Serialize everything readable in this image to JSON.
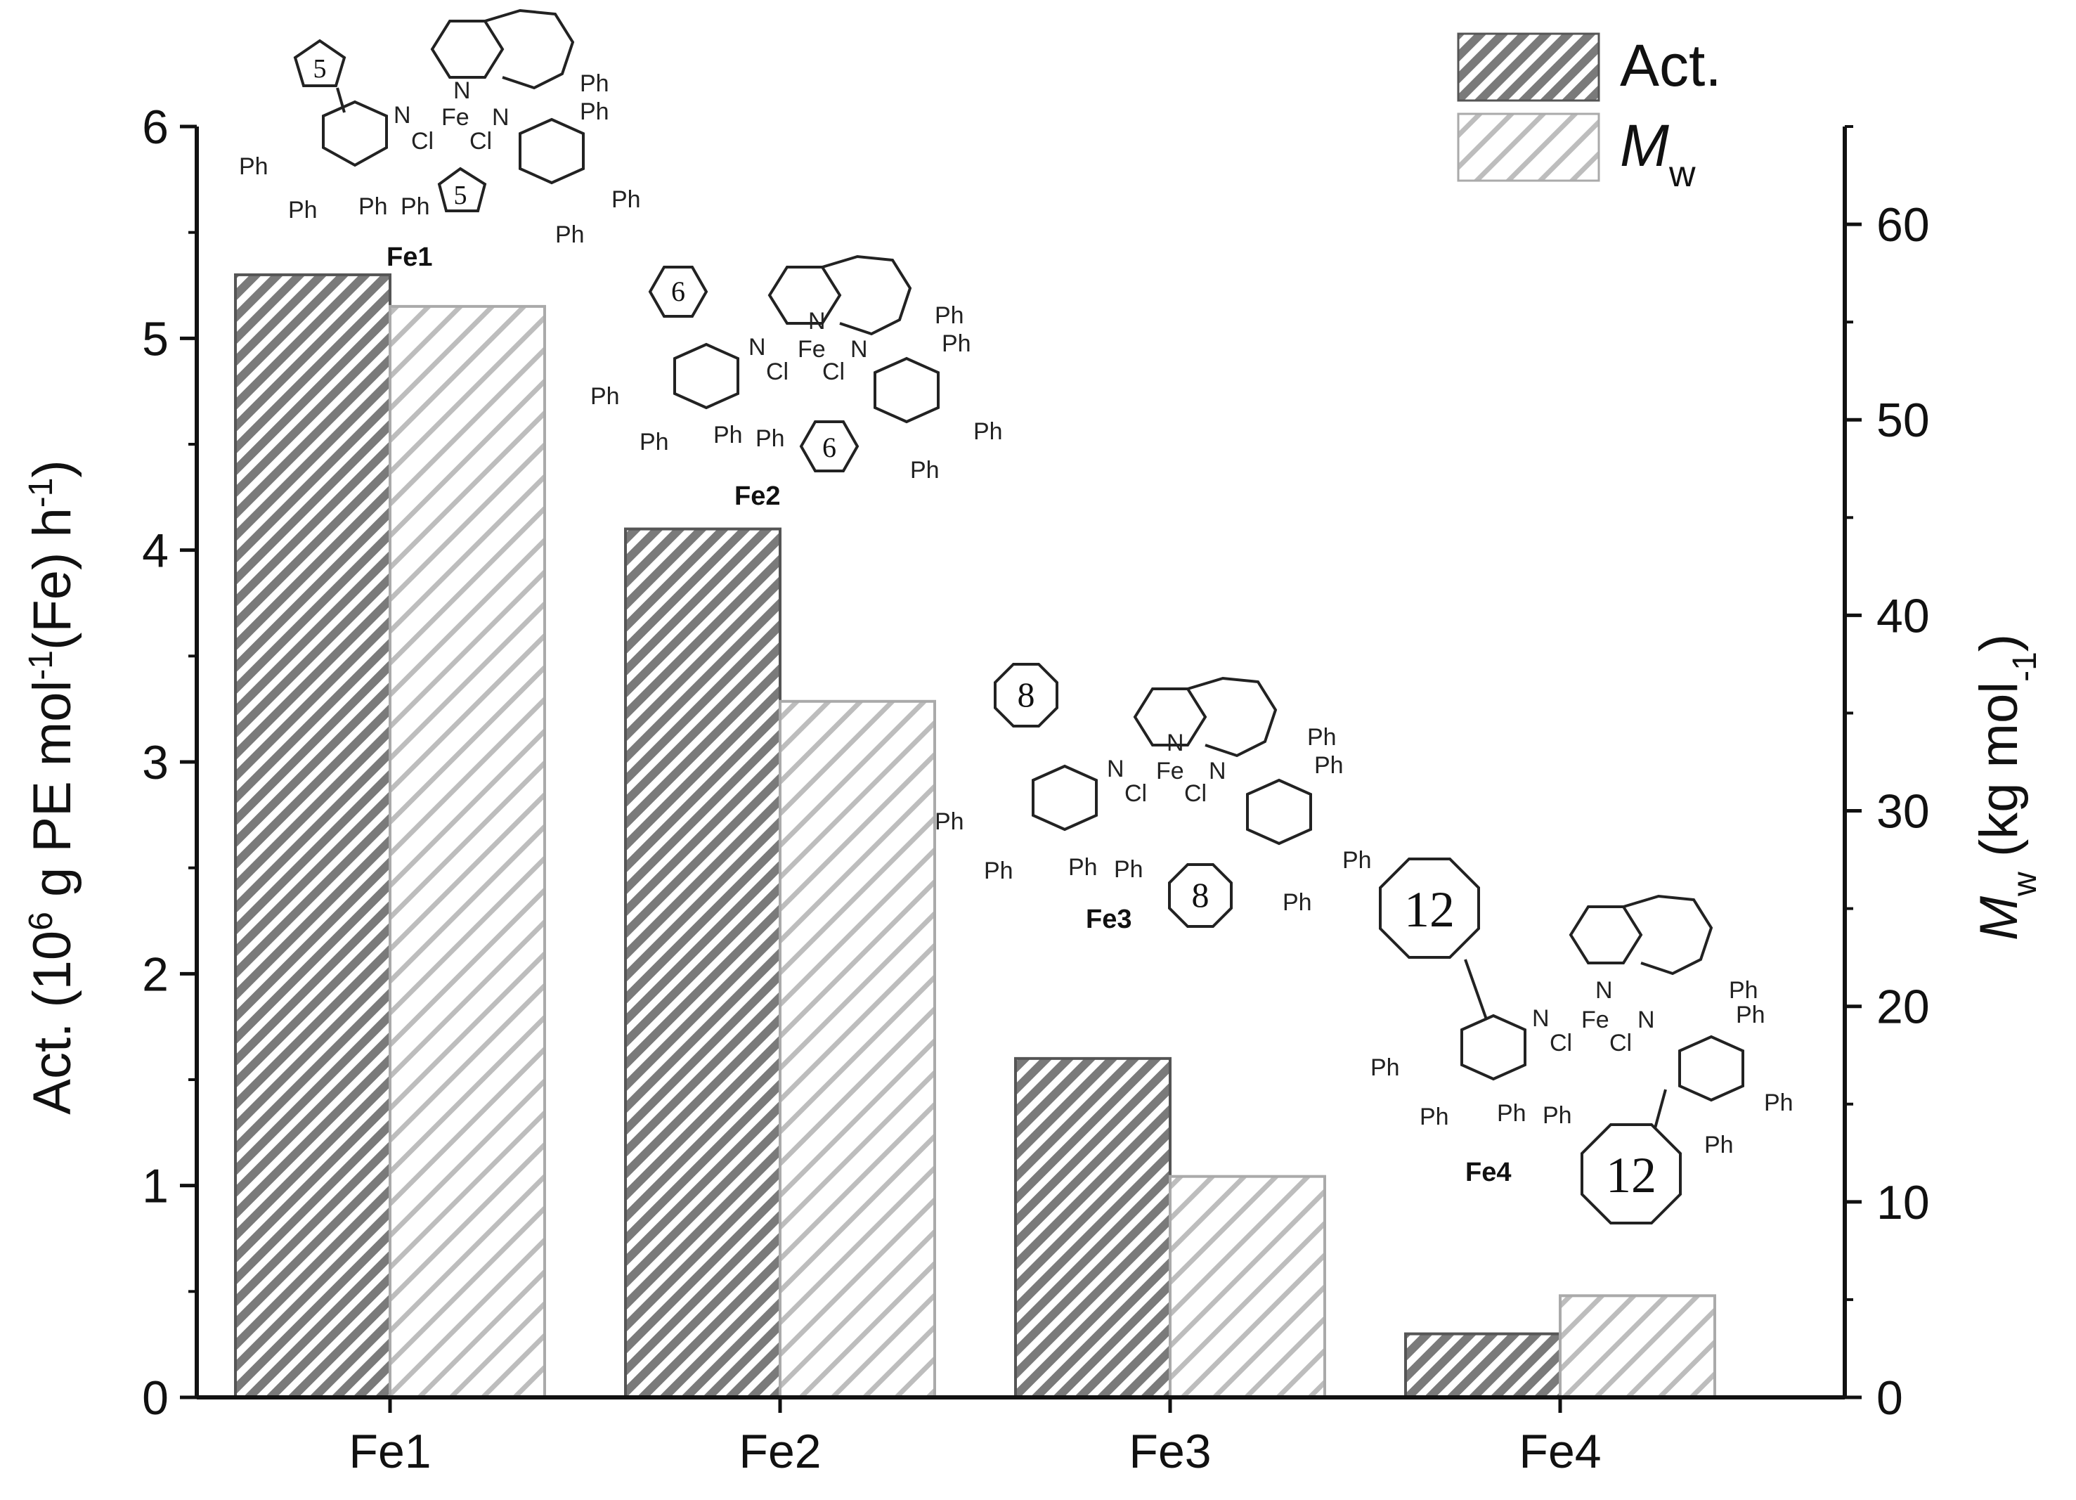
{
  "chart_data": {
    "type": "bar",
    "categories": [
      "Fe1",
      "Fe2",
      "Fe3",
      "Fe4"
    ],
    "series": [
      {
        "name": "Act.",
        "axis": "left",
        "values": [
          5.3,
          4.1,
          1.6,
          0.3
        ],
        "color": "#7a7a7a",
        "pattern": "dense-hatch"
      },
      {
        "name": "Mw",
        "axis": "right",
        "values": [
          55.8,
          35.6,
          11.3,
          5.2
        ],
        "color": "#bdbdbd",
        "pattern": "wide-hatch"
      }
    ],
    "y_left": {
      "label_parts": [
        "Act. (10",
        "6",
        " g PE mol",
        "-1",
        "(Fe) h",
        "-1",
        ")"
      ],
      "range": [
        0,
        6
      ],
      "ticks": [
        "0",
        "1",
        "2",
        "3",
        "4",
        "5",
        "6"
      ]
    },
    "y_right": {
      "label_parts": [
        "M",
        "w",
        " (kg mol",
        "-1",
        ")"
      ],
      "range": [
        0,
        65
      ],
      "ticks": [
        "0",
        "10",
        "20",
        "30",
        "40",
        "50",
        "60"
      ]
    },
    "legend": {
      "position": "top-right",
      "items": [
        {
          "label": "Act.",
          "sub": ""
        },
        {
          "label": "M",
          "sub": "w"
        }
      ]
    },
    "annotations": {
      "structures": [
        {
          "label": "Fe1",
          "ring": "5"
        },
        {
          "label": "Fe2",
          "ring": "6"
        },
        {
          "label": "Fe3",
          "ring": "8"
        },
        {
          "label": "Fe4",
          "ring": "12"
        }
      ],
      "atoms": {
        "iron": "Fe",
        "nitrogen": "N",
        "chlorine": "Cl",
        "phenyl": "Ph"
      }
    }
  }
}
